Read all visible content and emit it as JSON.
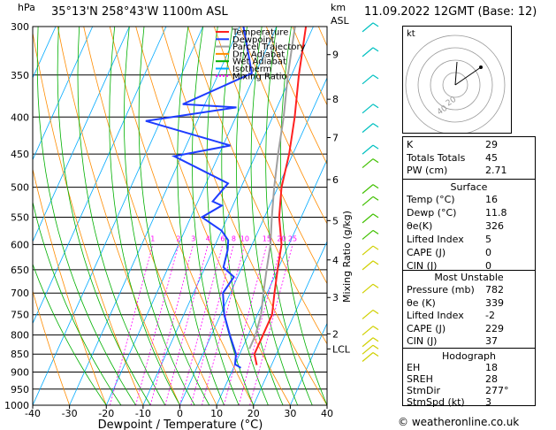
{
  "header": {
    "location": "35°13'N 258°43'W 1100m ASL",
    "datetime": "11.09.2022 12GMT (Base: 12)",
    "hpa_unit": "hPa",
    "km_unit": "km",
    "asl_unit": "ASL"
  },
  "legend": [
    "Temperature",
    "Dewpoint",
    "Parcel Trajectory",
    "Dry Adiabat",
    "Wet Adiabat",
    "Isotherm",
    "Mixing Ratio"
  ],
  "colors": {
    "temperature": "#ff2020",
    "dewpoint": "#1e3cff",
    "parcel": "#a0a0a0",
    "dry_adiabat": "#ff8c00",
    "wet_adiabat": "#00b000",
    "isotherm": "#00aaff",
    "mixing_ratio": "#ff00ff",
    "wind_upper": "#00c0c0",
    "wind_mid": "#40c000",
    "wind_low": "#d0d000"
  },
  "chart_data": {
    "type": "line",
    "title": "",
    "xlabel": "Dewpoint / Temperature (°C)",
    "ylabel": "hPa",
    "right_label": "Mixing Ratio (g/kg)",
    "xlim": [
      -40,
      40
    ],
    "ylim": [
      1000,
      300
    ],
    "x_ticks": [
      -40,
      -30,
      -20,
      -10,
      0,
      10,
      20,
      30,
      40
    ],
    "pressure_levels": [
      300,
      350,
      400,
      450,
      500,
      550,
      600,
      650,
      700,
      750,
      800,
      850,
      900,
      950,
      1000
    ],
    "km_ticks": [
      {
        "km": "9",
        "p": 328
      },
      {
        "km": "8",
        "p": 378
      },
      {
        "km": "7",
        "p": 427
      },
      {
        "km": "6",
        "p": 488
      },
      {
        "km": "5",
        "p": 556
      },
      {
        "km": "4",
        "p": 630
      },
      {
        "km": "3",
        "p": 710
      },
      {
        "km": "2",
        "p": 797
      },
      {
        "km": "LCL",
        "p": 836
      }
    ],
    "mixing_ratio_labels": [
      "1",
      "2",
      "3",
      "4",
      "6",
      "8",
      "10",
      "15",
      "20",
      "25"
    ],
    "series": [
      {
        "name": "Temperature",
        "points": [
          [
            -12,
            300
          ],
          [
            -8,
            350
          ],
          [
            -4,
            400
          ],
          [
            -1,
            450
          ],
          [
            1,
            500
          ],
          [
            4,
            550
          ],
          [
            8,
            600
          ],
          [
            10,
            650
          ],
          [
            12,
            700
          ],
          [
            14,
            750
          ],
          [
            14,
            800
          ],
          [
            14,
            850
          ],
          [
            16,
            880
          ]
        ]
      },
      {
        "name": "Dewpoint",
        "points": [
          [
            -29,
            300
          ],
          [
            -21,
            348
          ],
          [
            -36,
            384
          ],
          [
            -21,
            388
          ],
          [
            -44,
            405
          ],
          [
            -18,
            438
          ],
          [
            -32,
            453
          ],
          [
            -14,
            494
          ],
          [
            -16,
            523
          ],
          [
            -13,
            530
          ],
          [
            -17,
            550
          ],
          [
            -10,
            574
          ],
          [
            -7,
            592
          ],
          [
            -6,
            610
          ],
          [
            -5,
            645
          ],
          [
            -1,
            665
          ],
          [
            -2,
            700
          ],
          [
            1,
            750
          ],
          [
            5,
            800
          ],
          [
            9,
            850
          ],
          [
            10,
            878
          ],
          [
            12,
            888
          ]
        ]
      },
      {
        "name": "Parcel Trajectory",
        "points": [
          [
            -15,
            300
          ],
          [
            -11,
            350
          ],
          [
            -7,
            400
          ],
          [
            -4,
            450
          ],
          [
            -1,
            500
          ],
          [
            2,
            550
          ],
          [
            5,
            600
          ],
          [
            7,
            650
          ],
          [
            9,
            700
          ],
          [
            11,
            750
          ],
          [
            12,
            800
          ],
          [
            12,
            836
          ]
        ]
      }
    ]
  },
  "hodograph": {
    "label": "kt",
    "ring_labels": [
      "40",
      "20"
    ]
  },
  "indices": [
    {
      "label": "K",
      "value": "29"
    },
    {
      "label": "Totals Totals",
      "value": "45"
    },
    {
      "label": "PW (cm)",
      "value": "2.71"
    }
  ],
  "surface": {
    "title": "Surface",
    "rows": [
      {
        "label": "Temp (°C)",
        "value": "16"
      },
      {
        "label": "Dewp (°C)",
        "value": "11.8"
      },
      {
        "label": "θe(K)",
        "value": "326"
      },
      {
        "label": "Lifted Index",
        "value": "5"
      },
      {
        "label": "CAPE (J)",
        "value": "0"
      },
      {
        "label": "CIN (J)",
        "value": "0"
      }
    ]
  },
  "most_unstable": {
    "title": "Most Unstable",
    "rows": [
      {
        "label": "Pressure (mb)",
        "value": "782"
      },
      {
        "label": "θe (K)",
        "value": "339"
      },
      {
        "label": "Lifted Index",
        "value": "-2"
      },
      {
        "label": "CAPE (J)",
        "value": "229"
      },
      {
        "label": "CIN (J)",
        "value": "37"
      }
    ]
  },
  "hodograph_table": {
    "title": "Hodograph",
    "rows": [
      {
        "label": "EH",
        "value": "18"
      },
      {
        "label": "SREH",
        "value": "28"
      },
      {
        "label": "StmDir",
        "value": "277°"
      },
      {
        "label": "StmSpd (kt)",
        "value": "3"
      }
    ]
  },
  "footer": {
    "copyright": "© weatheronline.co.uk"
  }
}
